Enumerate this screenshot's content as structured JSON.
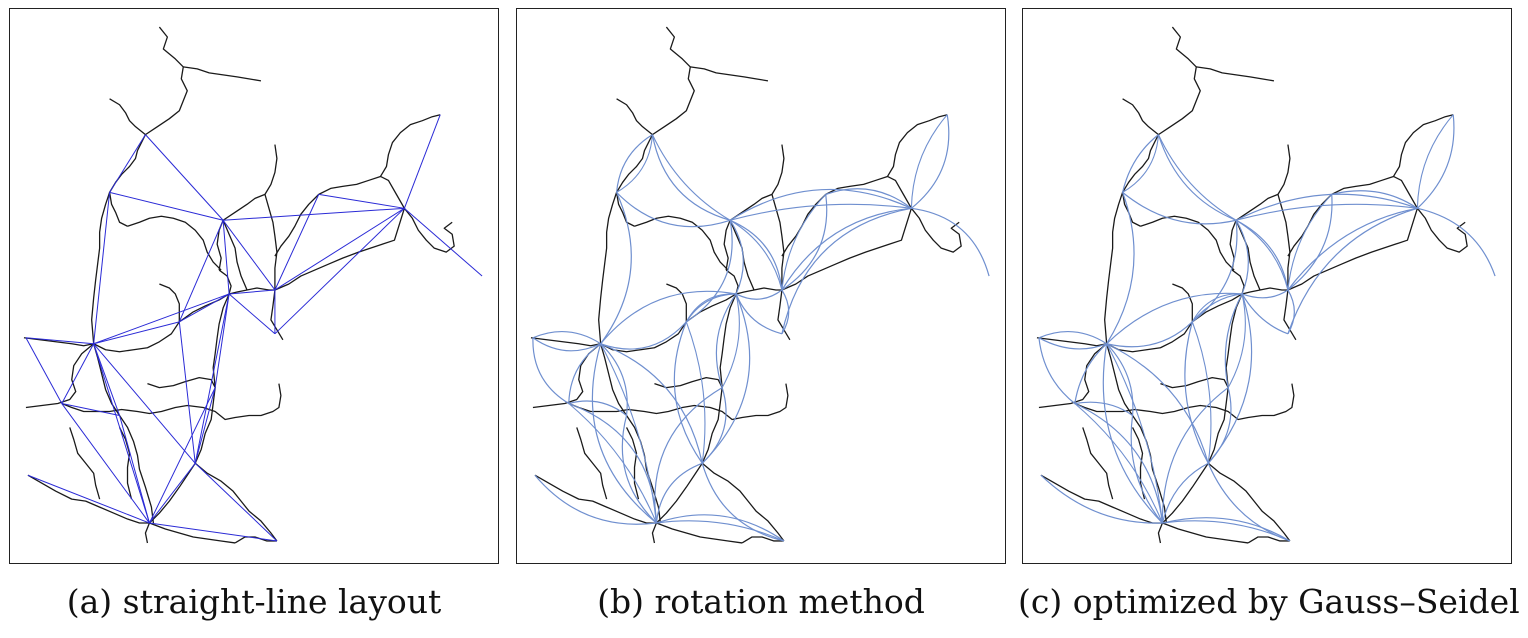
{
  "captions": {
    "a": "(a) straight-line layout",
    "b": "(b) rotation method",
    "c": "(c) optimized by Gauss–Seidel"
  },
  "colors": {
    "network": "#1a1a1a",
    "straight_edges": "#2a2ad6",
    "curved_edges": "#6f8fcf",
    "frame": "#222222",
    "background": "#ffffff"
  }
}
